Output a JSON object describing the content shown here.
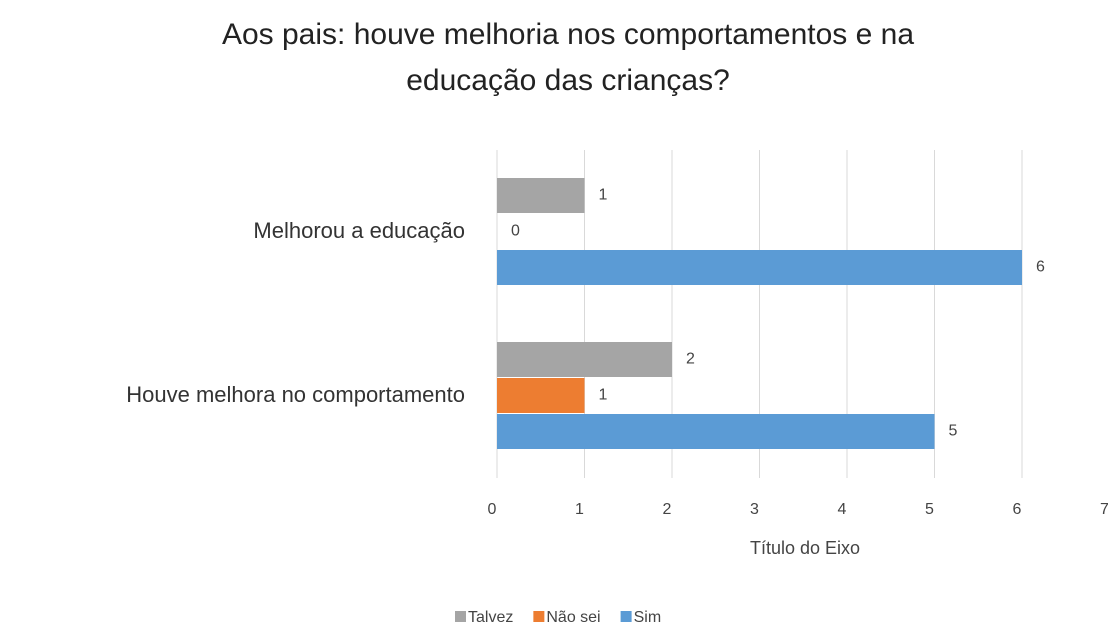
{
  "chart_data": {
    "type": "hbar",
    "title": "Aos pais: houve melhoria nos comportamentos e na educação das crianças?",
    "xlabel": "Título do Eixo",
    "categories": [
      "Houve melhora no comportamento",
      "Melhorou a educação"
    ],
    "series": [
      {
        "name": "Talvez",
        "color": "#a5a5a5",
        "values": [
          2,
          1
        ]
      },
      {
        "name": "Não sei",
        "color": "#ed7d31",
        "values": [
          1,
          0
        ]
      },
      {
        "name": "Sim",
        "color": "#5b9bd5",
        "values": [
          5,
          6
        ]
      }
    ],
    "xlim": [
      0,
      7
    ],
    "xticks": [
      0,
      1,
      2,
      3,
      4,
      5,
      6,
      7
    ],
    "grid": true,
    "legend": "bottom"
  }
}
